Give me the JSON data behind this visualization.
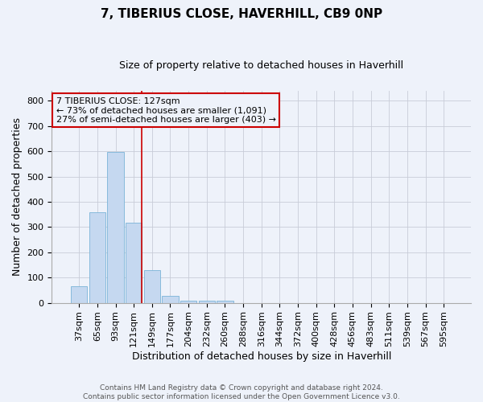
{
  "title1": "7, TIBERIUS CLOSE, HAVERHILL, CB9 0NP",
  "title2": "Size of property relative to detached houses in Haverhill",
  "xlabel": "Distribution of detached houses by size in Haverhill",
  "ylabel": "Number of detached properties",
  "footer1": "Contains HM Land Registry data © Crown copyright and database right 2024.",
  "footer2": "Contains public sector information licensed under the Open Government Licence v3.0.",
  "annotation_line1": "7 TIBERIUS CLOSE: 127sqm",
  "annotation_line2": "← 73% of detached houses are smaller (1,091)",
  "annotation_line3": "27% of semi-detached houses are larger (403) →",
  "bar_labels": [
    "37sqm",
    "65sqm",
    "93sqm",
    "121sqm",
    "149sqm",
    "177sqm",
    "204sqm",
    "232sqm",
    "260sqm",
    "288sqm",
    "316sqm",
    "344sqm",
    "372sqm",
    "400sqm",
    "428sqm",
    "456sqm",
    "483sqm",
    "511sqm",
    "539sqm",
    "567sqm",
    "595sqm"
  ],
  "bar_values": [
    65,
    357,
    597,
    317,
    128,
    27,
    9,
    9,
    9,
    0,
    0,
    0,
    0,
    0,
    0,
    0,
    0,
    0,
    0,
    0,
    0
  ],
  "bar_color": "#c5d8f0",
  "bar_edge_color": "#7ab4d8",
  "vline_color": "#cc0000",
  "vline_x": 3.43,
  "ylim": [
    0,
    840
  ],
  "yticks": [
    0,
    100,
    200,
    300,
    400,
    500,
    600,
    700,
    800
  ],
  "grid_color": "#c8ccd8",
  "bg_color": "#eef2fa",
  "annotation_box_color": "#cc0000",
  "title1_fontsize": 11,
  "title2_fontsize": 9,
  "ylabel_fontsize": 9,
  "xlabel_fontsize": 9,
  "tick_fontsize": 8,
  "footer_fontsize": 6.5
}
